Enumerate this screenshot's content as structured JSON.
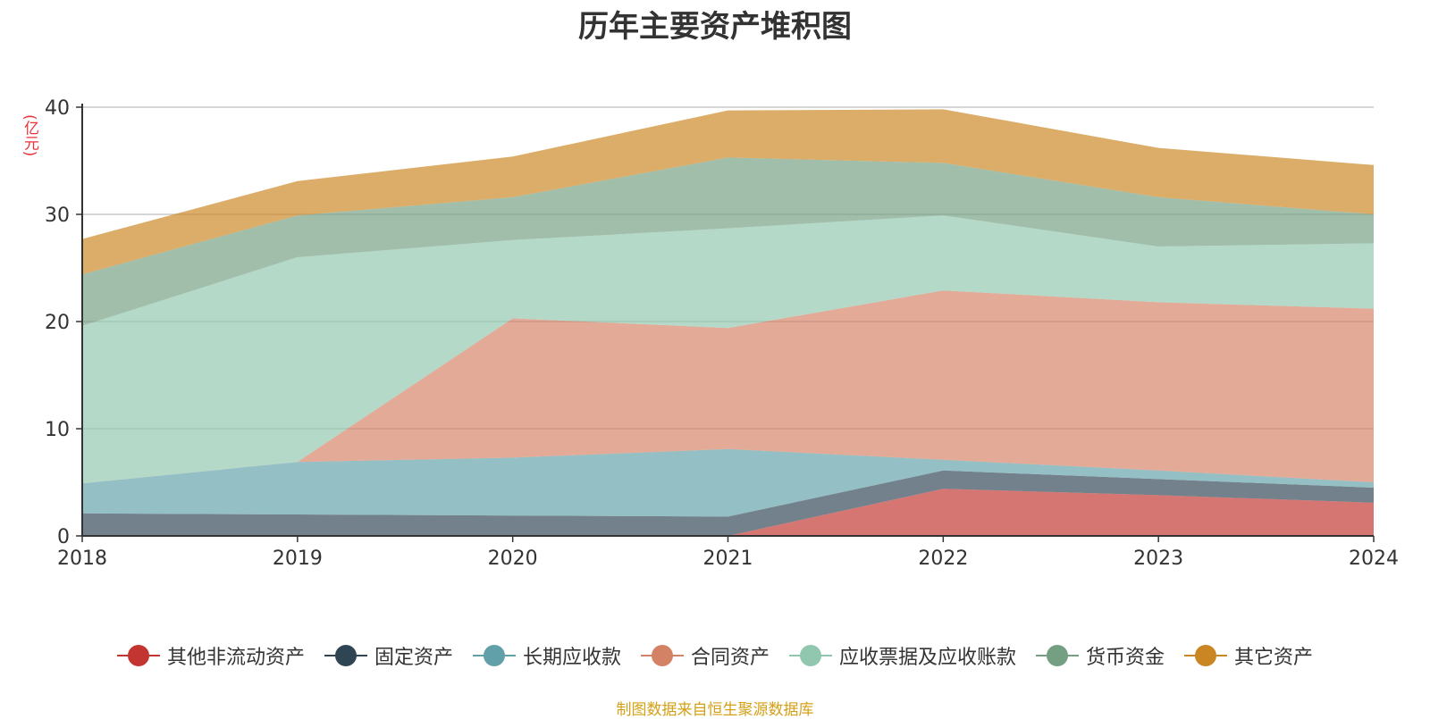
{
  "chart_data": {
    "type": "area",
    "stacked": true,
    "title": "历年主要资产堆积图",
    "unit_label": "(亿元)",
    "x": [
      "2018",
      "2019",
      "2020",
      "2021",
      "2022",
      "2023",
      "2024"
    ],
    "ylim": [
      0,
      40
    ],
    "yticks": [
      "0",
      "10",
      "20",
      "30",
      "40"
    ],
    "grid": true,
    "legend_position": "bottom",
    "series": [
      {
        "name": "其他非流动资产",
        "color": "#c23531",
        "values": [
          0,
          0,
          0,
          0,
          4.4,
          3.8,
          3.1
        ]
      },
      {
        "name": "固定资产",
        "color": "#2f4554",
        "values": [
          2.1,
          2.0,
          1.9,
          1.8,
          1.7,
          1.5,
          1.4
        ]
      },
      {
        "name": "长期应收款",
        "color": "#61a0a8",
        "values": [
          2.8,
          4.9,
          5.4,
          6.3,
          1.0,
          0.8,
          0.5
        ]
      },
      {
        "name": "合同资产",
        "color": "#d48265",
        "values": [
          0,
          0,
          13.0,
          11.3,
          15.8,
          15.7,
          16.2
        ]
      },
      {
        "name": "应收票据及应收账款",
        "color": "#91c7ae",
        "values": [
          14.7,
          19.1,
          7.3,
          9.3,
          7.0,
          5.2,
          6.1
        ]
      },
      {
        "name": "货币资金",
        "color": "#749f83",
        "values": [
          4.8,
          3.9,
          4.0,
          6.6,
          4.9,
          4.6,
          2.7
        ]
      },
      {
        "name": "其它资产",
        "color": "#ca8622",
        "values": [
          3.3,
          3.2,
          3.8,
          4.4,
          5.0,
          4.6,
          4.6
        ]
      }
    ]
  },
  "footer": {
    "source": "制图数据来自恒生聚源数据库"
  }
}
